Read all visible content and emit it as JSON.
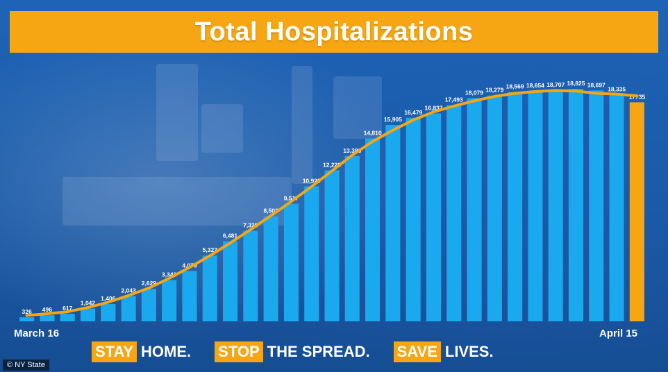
{
  "title": "Total Hospitalizations",
  "chart_data": {
    "type": "bar",
    "title": "Total Hospitalizations",
    "categories": [
      "March 16",
      "",
      "",
      "",
      "",
      "",
      "",
      "",
      "",
      "",
      "",
      "",
      "",
      "",
      "",
      "",
      "",
      "",
      "",
      "",
      "",
      "",
      "",
      "",
      "",
      "",
      "",
      "",
      "",
      "",
      "April 15"
    ],
    "values": [
      326,
      496,
      617,
      1042,
      1406,
      2043,
      2629,
      3343,
      4079,
      5327,
      6481,
      7328,
      8503,
      9517,
      10929,
      12226,
      13383,
      14810,
      15905,
      16479,
      16837,
      17493,
      18079,
      18279,
      18569,
      18654,
      18707,
      18825,
      18697,
      18335,
      17735
    ],
    "labels": [
      "326",
      "496",
      "617",
      "1,042",
      "1,406",
      "2,043",
      "2,629",
      "3,343",
      "4,079",
      "5,327",
      "6,481",
      "7,328",
      "8,503",
      "9,517",
      "10,929",
      "12,226",
      "13,383",
      "14,810",
      "15,905",
      "16,479",
      "16,837",
      "17,493",
      "18,079",
      "18,279",
      "18,569",
      "18,654",
      "18,707",
      "18,825",
      "18,697",
      "18,335",
      "17735"
    ],
    "ylim": [
      0,
      19500
    ],
    "grid": false,
    "bar_color": "#1aa8ee",
    "highlight_last_color": "#f5a612",
    "trend_line_color": "#f5a612"
  },
  "x_axis": {
    "start_label": "March 16",
    "end_label": "April 15"
  },
  "slogan": [
    {
      "highlight": "STAY",
      "rest": "HOME."
    },
    {
      "highlight": "STOP",
      "rest": "THE SPREAD."
    },
    {
      "highlight": "SAVE",
      "rest": "LIVES."
    }
  ],
  "source": "© NY State"
}
